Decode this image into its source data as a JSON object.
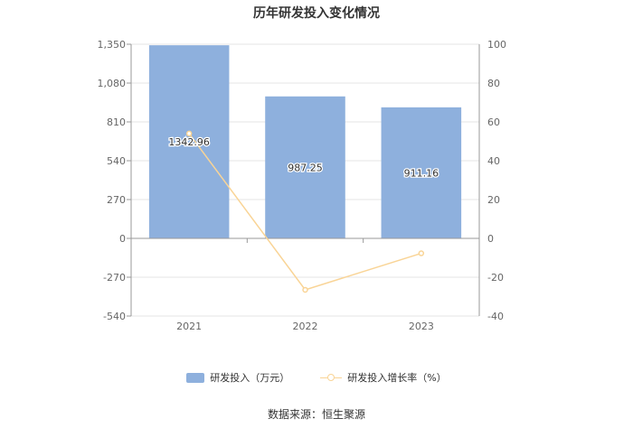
{
  "chart_data": {
    "type": "bar",
    "title": "历年研发投入变化情况",
    "categories": [
      "2021",
      "2022",
      "2023"
    ],
    "series": [
      {
        "name": "研发投入（万元）",
        "type": "bar",
        "axis": "left",
        "values": [
          1342.96,
          987.25,
          911.16
        ],
        "labels": [
          "1342.96",
          "987.25",
          "911.16"
        ]
      },
      {
        "name": "研发投入增长率（%）",
        "type": "line",
        "axis": "right",
        "values": [
          54.0,
          -26.5,
          -7.7
        ]
      }
    ],
    "y_left": {
      "range": [
        -540,
        1350
      ],
      "ticks": [
        "1,350",
        "1,080",
        "810",
        "540",
        "270",
        "0",
        "-270",
        "-540"
      ]
    },
    "y_right": {
      "range": [
        -40,
        100
      ],
      "ticks": [
        "100",
        "80",
        "60",
        "40",
        "20",
        "0",
        "-20",
        "-40"
      ]
    },
    "grid": true,
    "legend_position": "bottom",
    "colors": {
      "bar": "#8eb0dd",
      "line": "#f9d496"
    },
    "source": "数据来源：恒生聚源"
  }
}
